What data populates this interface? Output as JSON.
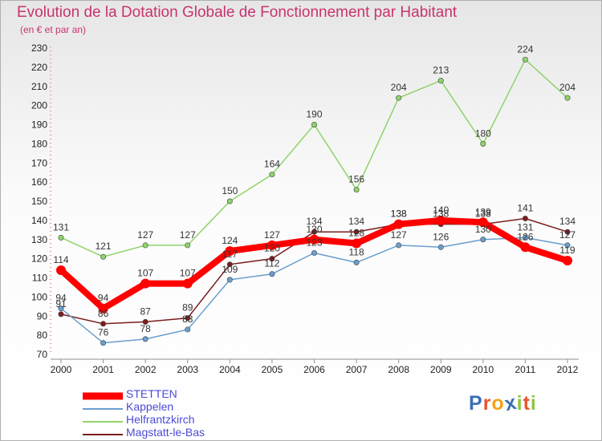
{
  "title": "Evolution de la Dotation Globale de Fonctionnement par Habitant",
  "subtitle": "(en € et par an)",
  "logo": {
    "text": "Proxiti",
    "colors": [
      "#3a6fb5",
      "#e8552d",
      "#f4a21b",
      "#3a6fb5",
      "#8cc63f",
      "#e8552d",
      "#8cc63f"
    ]
  },
  "chart_data": {
    "type": "line",
    "x": [
      "2000",
      "2001",
      "2002",
      "2003",
      "2004",
      "2005",
      "2006",
      "2007",
      "2008",
      "2009",
      "2010",
      "2011",
      "2012"
    ],
    "ylim": [
      70,
      230
    ],
    "yticks": [
      "70",
      "80",
      "90",
      "100",
      "110",
      "120",
      "130",
      "140",
      "150",
      "160",
      "170",
      "180",
      "190",
      "200",
      "210",
      "220",
      "230"
    ],
    "grid": false,
    "legend_position": "bottom-left",
    "series": [
      {
        "name": "Magstatt-le-Bas",
        "color": "#7a1e1e",
        "values": [
          91,
          86,
          87,
          89,
          117,
          120,
          134,
          134,
          138,
          138,
          138,
          141,
          134
        ],
        "labels": [
          "91",
          "86",
          "87",
          "89",
          "117",
          "120",
          "134",
          "134",
          "138",
          "138",
          "138",
          "141",
          "134"
        ]
      },
      {
        "name": "Helfrantzkirch",
        "color": "#8fd36a",
        "values": [
          131,
          121,
          127,
          127,
          150,
          164,
          190,
          156,
          204,
          213,
          180,
          224,
          204
        ],
        "labels": [
          "131",
          "121",
          "127",
          "127",
          "150",
          "164",
          "190",
          "156",
          "204",
          "213",
          "180",
          "224",
          "204"
        ]
      },
      {
        "name": "Kappelen",
        "color": "#6a9fce",
        "values": [
          94,
          76,
          78,
          83,
          109,
          112,
          123,
          118,
          127,
          126,
          130,
          131,
          127
        ],
        "labels": [
          "94",
          "76",
          "78",
          "83",
          "109",
          "112",
          "123",
          "118",
          "127",
          "126",
          "130",
          "131",
          "127"
        ]
      },
      {
        "name": "STETTEN",
        "color": "#ff0000",
        "values": [
          114,
          94,
          107,
          107,
          124,
          127,
          130,
          128,
          138,
          140,
          139,
          126,
          119
        ],
        "labels": [
          "114",
          "94",
          "107",
          "107",
          "124",
          "127",
          "130",
          "128",
          "138",
          "140",
          "139",
          "126",
          "119"
        ]
      }
    ]
  }
}
